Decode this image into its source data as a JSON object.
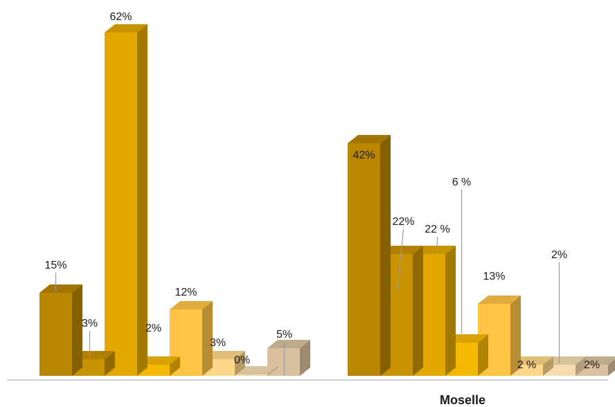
{
  "chart_data": {
    "type": "bar",
    "categories": [
      "",
      "Moselle"
    ],
    "ylim": [
      0,
      65
    ],
    "grid": false,
    "legend": "none",
    "series_colors": [
      "#b88600",
      "#c99200",
      "#e2a800",
      "#f5b800",
      "#ffc445",
      "#ffd68a",
      "#f5dcb0",
      "#d9c19f"
    ],
    "groups": [
      {
        "category": "",
        "values": [
          15,
          3,
          62,
          2,
          12,
          3,
          0,
          5
        ],
        "labels": [
          "15%",
          "3%",
          "62%",
          "2%",
          "12%",
          "3%",
          "0%",
          "5%"
        ]
      },
      {
        "category": "Moselle",
        "values": [
          42,
          22,
          22,
          6,
          13,
          2,
          2,
          2
        ],
        "labels": [
          "42%",
          "22%",
          "22 %",
          "6 %",
          "13%",
          "2 %",
          "2%",
          "2%"
        ]
      }
    ]
  }
}
